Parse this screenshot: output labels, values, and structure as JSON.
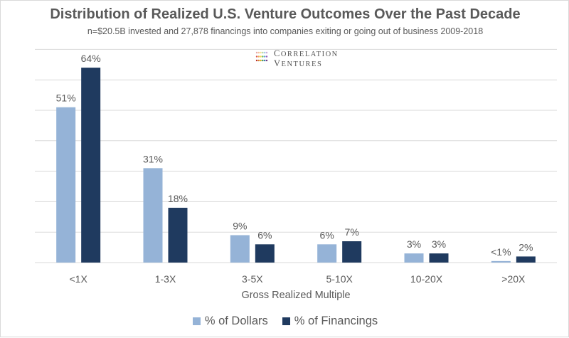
{
  "title": "Distribution of Realized U.S. Venture Outcomes Over the Past Decade",
  "subtitle": "n=$20.5B invested and 27,878 financings into companies exiting or going out of business 2009-2018",
  "logo": {
    "line1": "Correlation",
    "line2": "Ventures",
    "dot_colors": [
      "#e8a5a5",
      "#f3c49b",
      "#f6e08f",
      "#a9d3a5",
      "#9fc5e8",
      "#c7a8d9",
      "#d9534f",
      "#f0ad4e",
      "#f7d046",
      "#5cb85c",
      "#5b9bd5",
      "#9b59b6",
      "#b52b27",
      "#d9822b",
      "#d4ac0d",
      "#2e8b57",
      "#2e6da4",
      "#6c3483"
    ]
  },
  "colors": {
    "dollars": "#95b3d7",
    "financings": "#1f3a5f",
    "gridline": "#d9d9d9",
    "text": "#595959"
  },
  "chart_data": {
    "type": "bar",
    "title": "Distribution of Realized U.S. Venture Outcomes Over the Past Decade",
    "subtitle": "n=$20.5B invested and 27,878 financings into companies exiting or going out of business 2009-2018",
    "xlabel": "Gross Realized Multiple",
    "ylabel": "",
    "categories": [
      "<1X",
      "1-3X",
      "3-5X",
      "5-10X",
      "10-20X",
      ">20X"
    ],
    "series": [
      {
        "name": "% of Dollars",
        "values": [
          51,
          31,
          9,
          6,
          3,
          0.5
        ],
        "labels": [
          "51%",
          "31%",
          "9%",
          "6%",
          "3%",
          "<1%"
        ]
      },
      {
        "name": "% of Financings",
        "values": [
          64,
          18,
          6,
          7,
          3,
          2
        ],
        "labels": [
          "64%",
          "18%",
          "6%",
          "7%",
          "3%",
          "2%"
        ]
      }
    ],
    "ylim": [
      0,
      70
    ],
    "gridlines": [
      0,
      10,
      20,
      30,
      40,
      50,
      60,
      70
    ],
    "grid": true,
    "legend_position": "bottom",
    "y_tick_labels_shown": false
  }
}
